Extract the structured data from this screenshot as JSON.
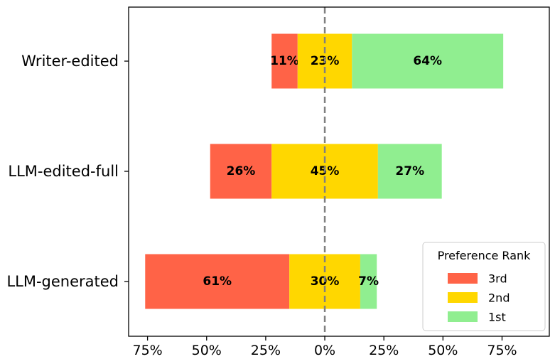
{
  "chart_data": {
    "type": "bar",
    "orientation": "horizontal",
    "stacked": "diverging",
    "categories": [
      "Writer-edited",
      "LLM-edited-full",
      "LLM-generated"
    ],
    "series": [
      {
        "name": "3rd",
        "values": [
          11,
          26,
          61
        ],
        "labels": [
          "11%",
          "26%",
          "61%"
        ],
        "color": "#ff6347"
      },
      {
        "name": "2nd",
        "values": [
          23,
          45,
          30
        ],
        "labels": [
          "23%",
          "45%",
          "30%"
        ],
        "color": "#ffd700"
      },
      {
        "name": "1st",
        "values": [
          64,
          27,
          7
        ],
        "labels": [
          "64%",
          "27%",
          "7%"
        ],
        "color": "#90ee90"
      }
    ],
    "centering": "2nd series centered on 0 (3rd to the left, 1st to the right)",
    "xlim": [
      -83,
      95
    ],
    "xticks": [
      -75,
      -50,
      -25,
      0,
      25,
      50,
      75
    ],
    "xtick_labels": [
      "75%",
      "50%",
      "25%",
      "0%",
      "25%",
      "50%",
      "75%"
    ],
    "reference_line": {
      "x": 0,
      "style": "dashed",
      "color": "#808080"
    },
    "legend": {
      "title": "Preference Rank",
      "entries": [
        "3rd",
        "2nd",
        "1st"
      ],
      "placement": "lower right"
    },
    "title": "",
    "xlabel": "",
    "ylabel": ""
  }
}
